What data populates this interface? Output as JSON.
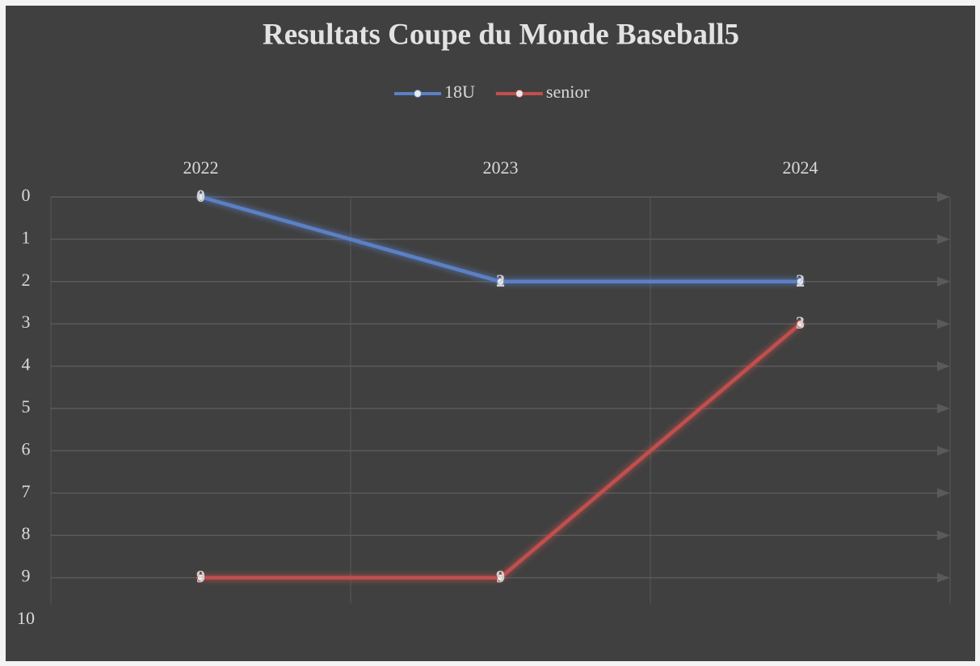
{
  "chart_data": {
    "type": "line",
    "title": "Resultats Coupe du Monde  Baseball5",
    "categories": [
      "2022",
      "2023",
      "2024"
    ],
    "series": [
      {
        "name": "18U",
        "color": "#5b80c6",
        "values": [
          0,
          2,
          2
        ]
      },
      {
        "name": "senior",
        "color": "#c0504d",
        "values": [
          9,
          9,
          3
        ]
      }
    ],
    "ylim": [
      0,
      10
    ],
    "yticks": [
      0,
      1,
      2,
      3,
      4,
      5,
      6,
      7,
      8,
      9,
      10
    ],
    "y_reversed": true,
    "grid": true,
    "legend": "top",
    "data_labels": true
  }
}
